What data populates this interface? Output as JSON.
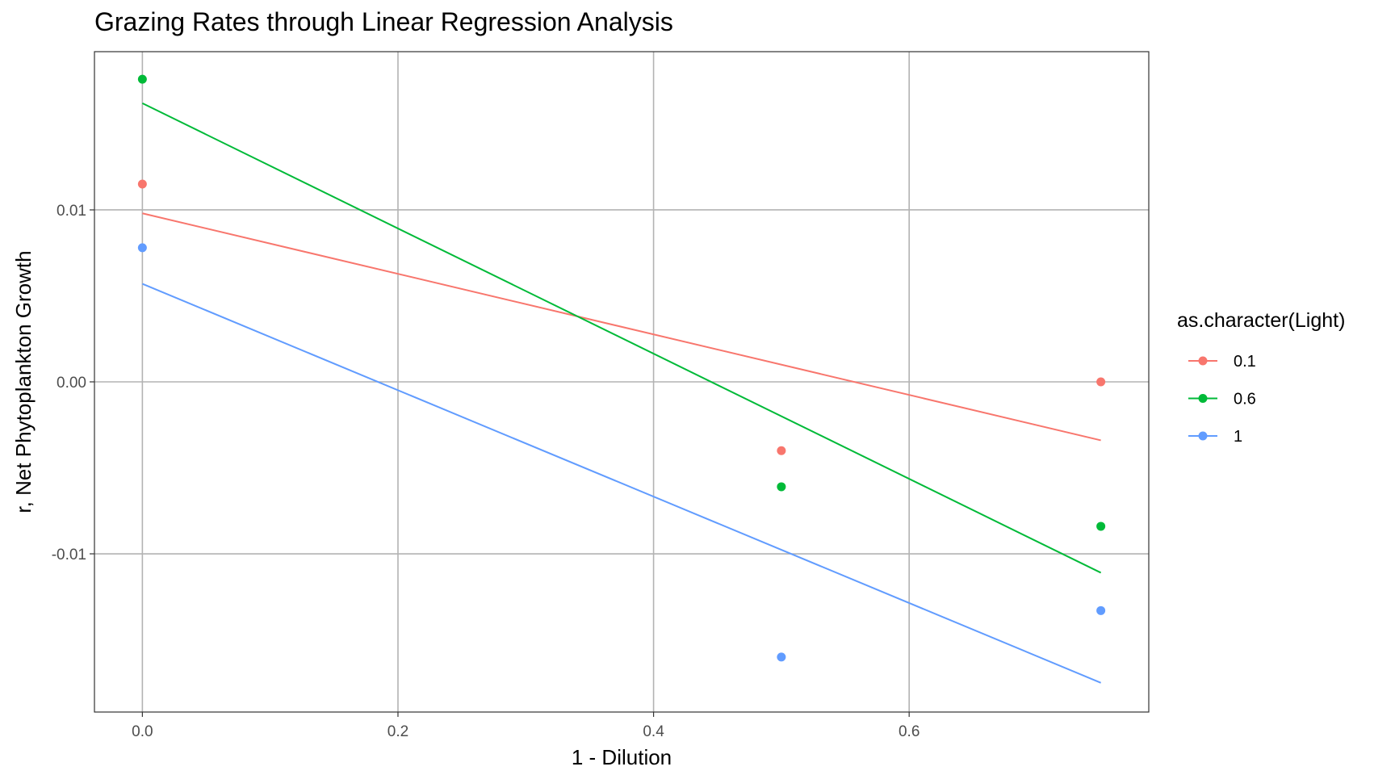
{
  "chart_data": {
    "type": "scatter",
    "title": "Grazing Rates through Linear Regression Analysis",
    "xlabel": "1 - Dilution",
    "ylabel": "r, Net Phytoplankton Growth",
    "xlim": [
      -0.0375,
      0.7875
    ],
    "ylim": [
      -0.0192,
      0.0192
    ],
    "x_ticks": [
      0.0,
      0.2,
      0.4,
      0.6
    ],
    "x_tick_labels": [
      "0.0",
      "0.2",
      "0.4",
      "0.6"
    ],
    "y_ticks": [
      0.01,
      0.0,
      -0.01
    ],
    "y_tick_labels": [
      "0.01",
      "0.00",
      "-0.01"
    ],
    "grid": true,
    "legend": {
      "title": "as.character(Light)",
      "position": "right"
    },
    "series": [
      {
        "name": "0.1",
        "color": "#F8766D",
        "points": [
          [
            0.0,
            0.0115
          ],
          [
            0.5,
            -0.004
          ],
          [
            0.75,
            0.0
          ]
        ],
        "fit": [
          [
            0.0,
            0.0098
          ],
          [
            0.75,
            -0.0034
          ]
        ]
      },
      {
        "name": "0.6",
        "color": "#00BA38",
        "points": [
          [
            0.0,
            0.0176
          ],
          [
            0.5,
            -0.0061
          ],
          [
            0.75,
            -0.0084
          ]
        ],
        "fit": [
          [
            0.0,
            0.0162
          ],
          [
            0.75,
            -0.0111
          ]
        ]
      },
      {
        "name": "1",
        "color": "#619CFF",
        "points": [
          [
            0.0,
            0.0078
          ],
          [
            0.5,
            -0.016
          ],
          [
            0.75,
            -0.0133
          ]
        ],
        "fit": [
          [
            0.0,
            0.0057
          ],
          [
            0.75,
            -0.0175
          ]
        ]
      }
    ]
  }
}
